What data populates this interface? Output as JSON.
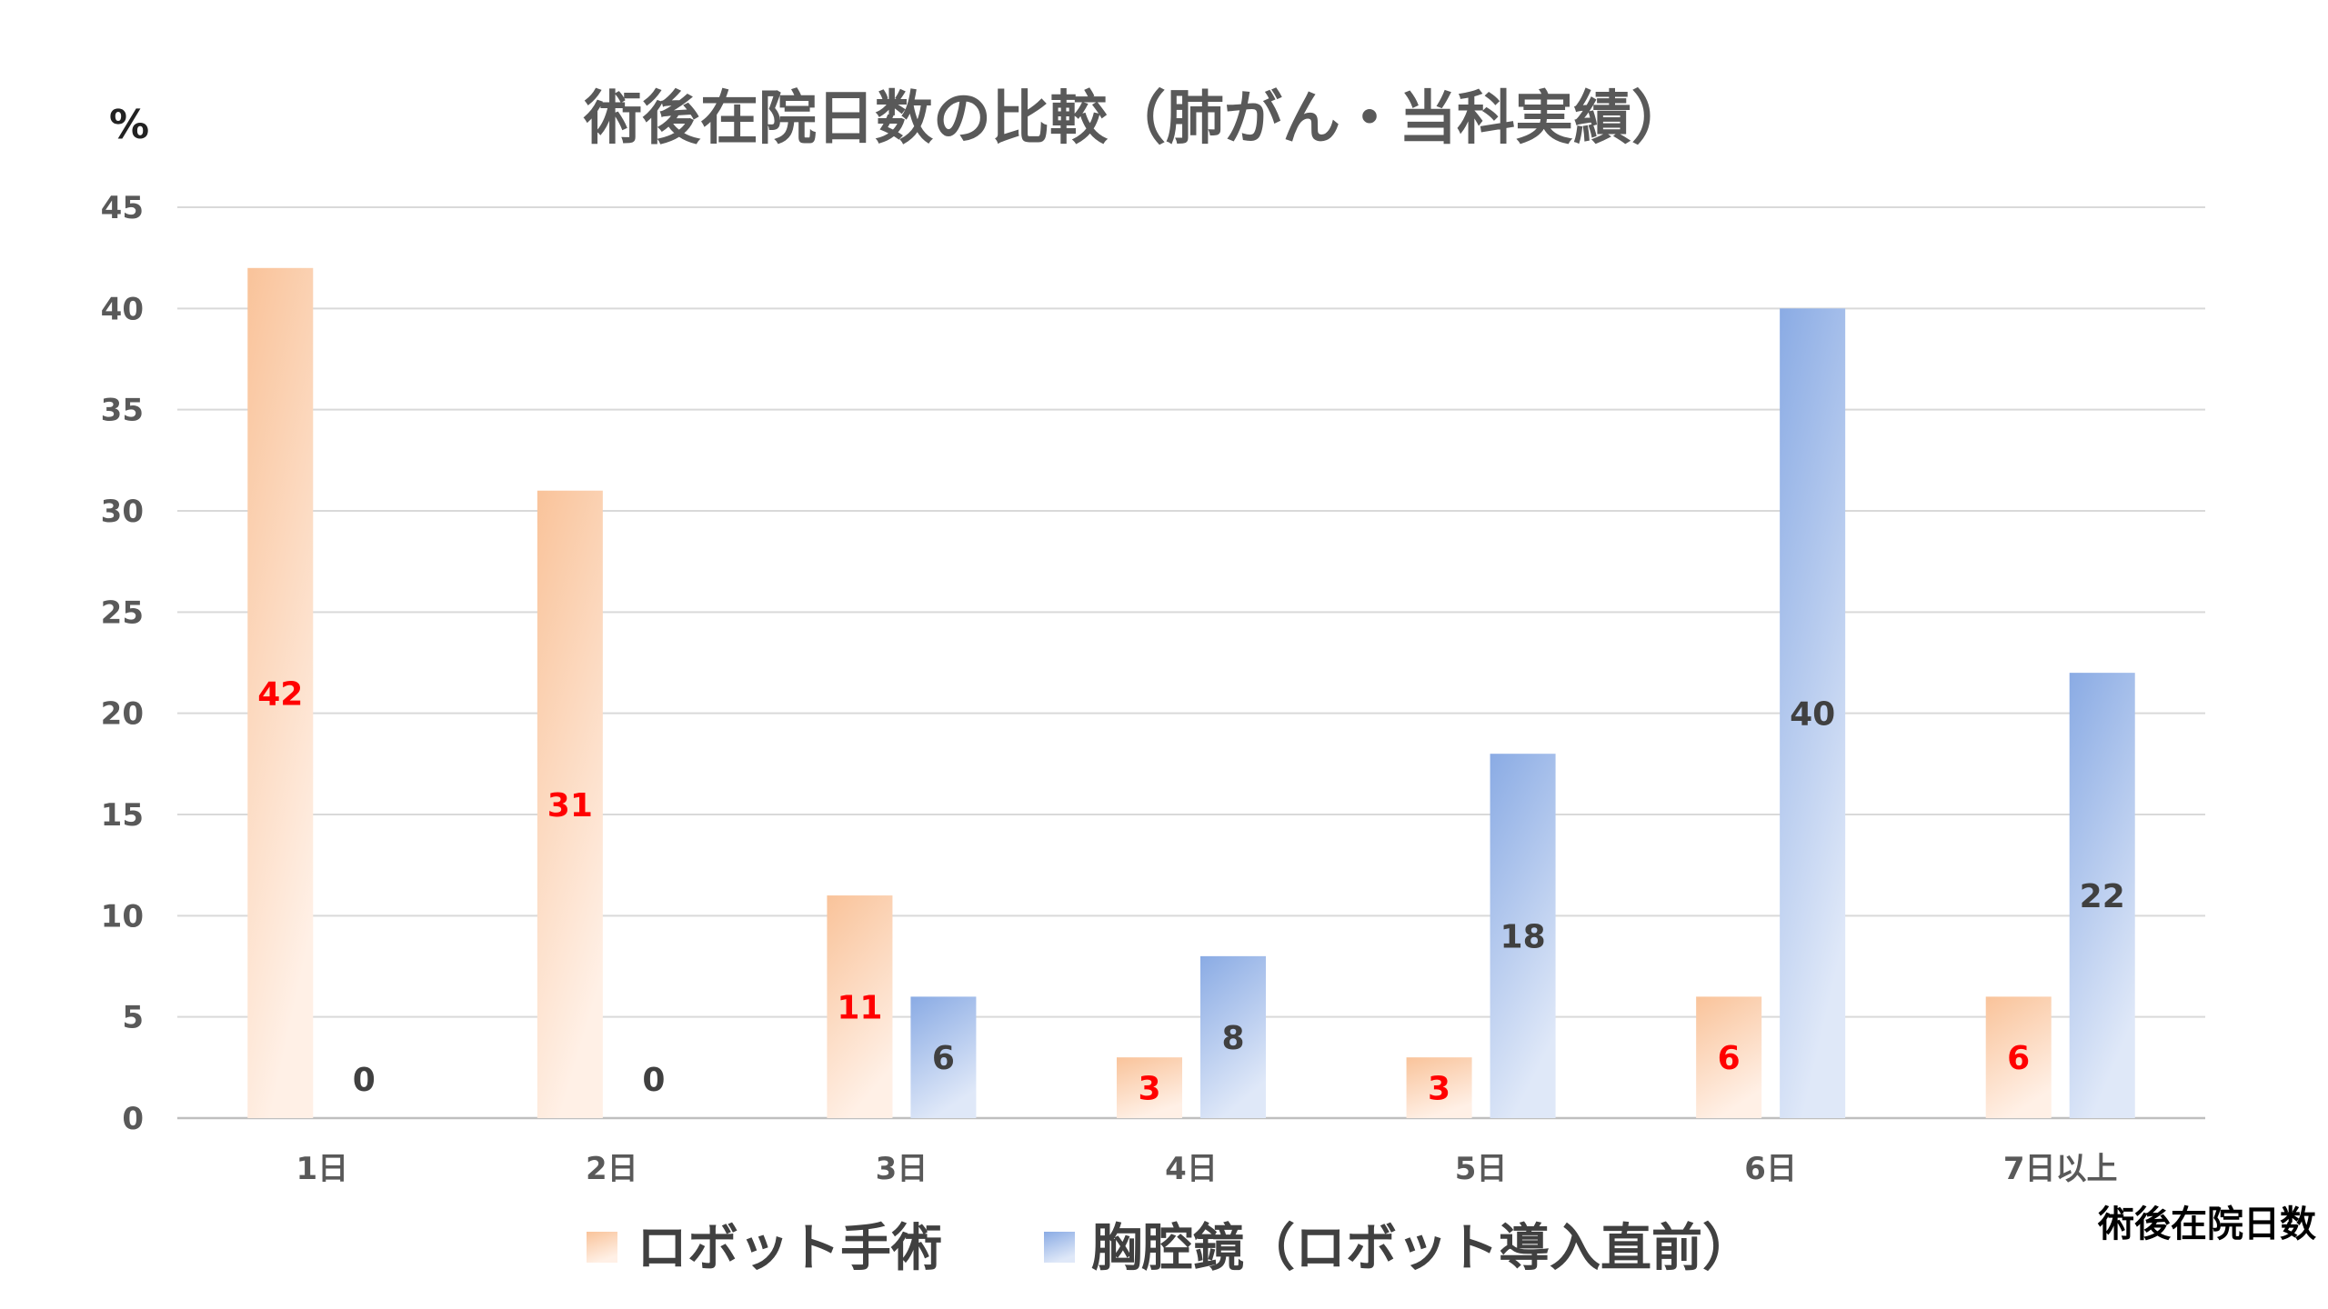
{
  "chart_data": {
    "type": "bar",
    "title": "術後在院日数の比較（肺がん・当科実績）",
    "ylabel": "%",
    "xlabel": "術後在院日数",
    "ylim": [
      0,
      45
    ],
    "yticks": [
      0,
      5,
      10,
      15,
      20,
      25,
      30,
      35,
      40,
      45
    ],
    "grid": true,
    "legend_position": "bottom",
    "categories": [
      "1日",
      "2日",
      "3日",
      "4日",
      "5日",
      "6日",
      "7日以上"
    ],
    "series": [
      {
        "name": "ロボット手術",
        "values": [
          42,
          31,
          11,
          3,
          3,
          6,
          6
        ],
        "color": "#f8c9a4",
        "label_color": "#ff0000"
      },
      {
        "name": "胸腔鏡（ロボット導入直前）",
        "values": [
          0,
          0,
          6,
          8,
          18,
          40,
          22
        ],
        "color": "#8fb0e6",
        "label_color": "#404040"
      }
    ]
  }
}
